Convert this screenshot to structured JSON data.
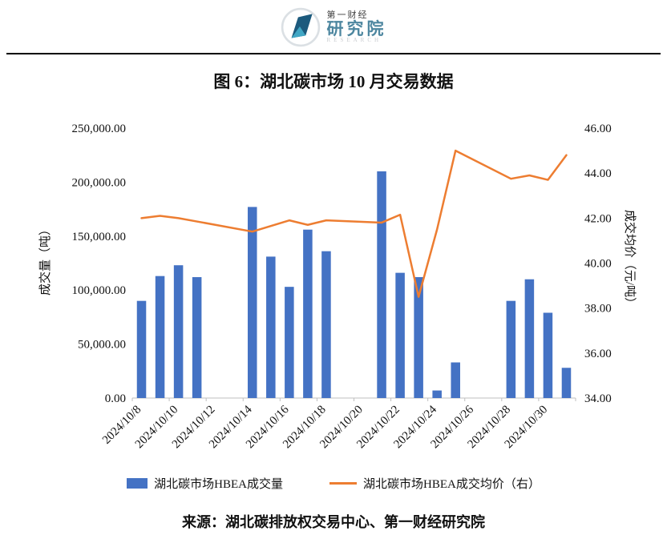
{
  "header": {
    "logo": {
      "brand_small": "第一财经",
      "brand_large": "研究院",
      "brand_sub": "RESEARCH"
    }
  },
  "figure": {
    "title": "图 6：湖北碳市场 10 月交易数据",
    "source": "来源：湖北碳排放权交易中心、第一财经研究院"
  },
  "chart_data": {
    "type": "bar+line",
    "grid": false,
    "legend_position": "bottom",
    "tick_interval": 2,
    "categories": [
      "2024/10/8",
      "2024/10/9",
      "2024/10/10",
      "2024/10/11",
      "2024/10/12",
      "2024/10/13",
      "2024/10/14",
      "2024/10/15",
      "2024/10/16",
      "2024/10/17",
      "2024/10/18",
      "2024/10/19",
      "2024/10/20",
      "2024/10/21",
      "2024/10/22",
      "2024/10/23",
      "2024/10/24",
      "2024/10/25",
      "2024/10/26",
      "2024/10/27",
      "2024/10/28",
      "2024/10/29",
      "2024/10/30",
      "2024/10/31"
    ],
    "x_tick_labels": [
      "2024/10/8",
      "2024/10/10",
      "2024/10/12",
      "2024/10/14",
      "2024/10/16",
      "2024/10/18",
      "2024/10/20",
      "2024/10/22",
      "2024/10/24",
      "2024/10/26",
      "2024/10/28",
      "2024/10/30"
    ],
    "series": [
      {
        "name": "湖北碳市场HBEA成交量",
        "type": "bar",
        "axis": "left",
        "color": "#4472C4",
        "values": [
          90000,
          113000,
          123000,
          112000,
          null,
          null,
          177000,
          131000,
          103000,
          156000,
          136000,
          null,
          null,
          210000,
          116000,
          112000,
          7000,
          33000,
          null,
          null,
          90000,
          110000,
          79000,
          28000
        ]
      },
      {
        "name": "湖北碳市场HBEA成交均价（右）",
        "type": "line",
        "axis": "right",
        "color": "#ED7D31",
        "values": [
          42.0,
          42.1,
          42.0,
          41.85,
          null,
          null,
          41.4,
          41.65,
          41.9,
          41.7,
          41.9,
          null,
          null,
          41.8,
          42.15,
          38.5,
          41.5,
          45.0,
          null,
          null,
          43.75,
          43.9,
          43.7,
          44.8
        ]
      }
    ],
    "left_axis": {
      "label": "成交量（吨）",
      "min": 0,
      "max": 250000,
      "step": 50000
    },
    "right_axis": {
      "label": "成交均价（元/吨）",
      "min": 34,
      "max": 46,
      "step": 2
    }
  }
}
